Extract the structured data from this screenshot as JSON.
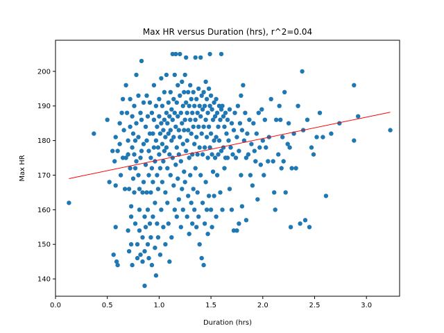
{
  "chart_data": {
    "type": "scatter",
    "title": "Max HR versus Duration (hrs), r^2=0.04",
    "xlabel": "Duration (hrs)",
    "ylabel": "Max HR",
    "xlim": [
      0.0,
      3.32
    ],
    "ylim": [
      135,
      209
    ],
    "xticks": [
      "0.0",
      "0.5",
      "1.0",
      "1.5",
      "2.0",
      "2.5",
      "3.0"
    ],
    "yticks": [
      "140",
      "150",
      "160",
      "170",
      "180",
      "190",
      "200"
    ],
    "grid": false,
    "marker_color": "#1f77b4",
    "fit_line_color": "#ff0000",
    "fit_line": [
      [
        0.13,
        169.0
      ],
      [
        3.23,
        188.2
      ]
    ],
    "points": [
      [
        0.13,
        162
      ],
      [
        0.37,
        182
      ],
      [
        0.5,
        186
      ],
      [
        0.52,
        168
      ],
      [
        0.55,
        177
      ],
      [
        0.56,
        147
      ],
      [
        0.57,
        174
      ],
      [
        0.58,
        167
      ],
      [
        0.58,
        155
      ],
      [
        0.59,
        145
      ],
      [
        0.6,
        144
      ],
      [
        0.58,
        181
      ],
      [
        0.6,
        177
      ],
      [
        0.62,
        185
      ],
      [
        0.62,
        179
      ],
      [
        0.63,
        170
      ],
      [
        0.64,
        188
      ],
      [
        0.65,
        192
      ],
      [
        0.65,
        175
      ],
      [
        0.66,
        183
      ],
      [
        0.67,
        166
      ],
      [
        0.68,
        196
      ],
      [
        0.68,
        175
      ],
      [
        0.69,
        188
      ],
      [
        0.7,
        176
      ],
      [
        0.7,
        154
      ],
      [
        0.7,
        180
      ],
      [
        0.71,
        148
      ],
      [
        0.71,
        166
      ],
      [
        0.72,
        192
      ],
      [
        0.72,
        184
      ],
      [
        0.72,
        172
      ],
      [
        0.73,
        161
      ],
      [
        0.73,
        158
      ],
      [
        0.73,
        150
      ],
      [
        0.74,
        187
      ],
      [
        0.74,
        178
      ],
      [
        0.74,
        144
      ],
      [
        0.75,
        182
      ],
      [
        0.75,
        169
      ],
      [
        0.76,
        190
      ],
      [
        0.76,
        176
      ],
      [
        0.76,
        165
      ],
      [
        0.77,
        180
      ],
      [
        0.77,
        172
      ],
      [
        0.77,
        156
      ],
      [
        0.78,
        199
      ],
      [
        0.78,
        185
      ],
      [
        0.78,
        174
      ],
      [
        0.79,
        150
      ],
      [
        0.79,
        146
      ],
      [
        0.8,
        193
      ],
      [
        0.8,
        181
      ],
      [
        0.8,
        170
      ],
      [
        0.81,
        166
      ],
      [
        0.81,
        160
      ],
      [
        0.81,
        154
      ],
      [
        0.82,
        188
      ],
      [
        0.82,
        175
      ],
      [
        0.82,
        147
      ],
      [
        0.83,
        203
      ],
      [
        0.83,
        186
      ],
      [
        0.83,
        177
      ],
      [
        0.84,
        165
      ],
      [
        0.84,
        152
      ],
      [
        0.84,
        145
      ],
      [
        0.85,
        191
      ],
      [
        0.85,
        179
      ],
      [
        0.85,
        168
      ],
      [
        0.86,
        158
      ],
      [
        0.86,
        148
      ],
      [
        0.86,
        138
      ],
      [
        0.87,
        184
      ],
      [
        0.87,
        173
      ],
      [
        0.87,
        155
      ],
      [
        0.88,
        193
      ],
      [
        0.88,
        180
      ],
      [
        0.88,
        165
      ],
      [
        0.89,
        187
      ],
      [
        0.89,
        160
      ],
      [
        0.89,
        150
      ],
      [
        0.9,
        177
      ],
      [
        0.9,
        170
      ],
      [
        0.9,
        146
      ],
      [
        0.91,
        191
      ],
      [
        0.91,
        182
      ],
      [
        0.91,
        156
      ],
      [
        0.92,
        175
      ],
      [
        0.92,
        165
      ],
      [
        0.92,
        152
      ],
      [
        0.93,
        188
      ],
      [
        0.93,
        172
      ],
      [
        0.93,
        144
      ],
      [
        0.94,
        182
      ],
      [
        0.94,
        168
      ],
      [
        0.94,
        158
      ],
      [
        0.95,
        196
      ],
      [
        0.95,
        186
      ],
      [
        0.95,
        178
      ],
      [
        0.96,
        174
      ],
      [
        0.96,
        162
      ],
      [
        0.96,
        149
      ],
      [
        0.97,
        190
      ],
      [
        0.97,
        180
      ],
      [
        0.97,
        141
      ],
      [
        0.98,
        184
      ],
      [
        0.98,
        170
      ],
      [
        0.98,
        156
      ],
      [
        0.99,
        178
      ],
      [
        0.99,
        166
      ],
      [
        0.99,
        152
      ],
      [
        1.0,
        192
      ],
      [
        1.0,
        187
      ],
      [
        1.0,
        176
      ],
      [
        1.01,
        182
      ],
      [
        1.01,
        172
      ],
      [
        1.01,
        147
      ],
      [
        1.02,
        198
      ],
      [
        1.02,
        185
      ],
      [
        1.02,
        160
      ],
      [
        1.03,
        190
      ],
      [
        1.03,
        179
      ],
      [
        1.03,
        168
      ],
      [
        1.04,
        183
      ],
      [
        1.04,
        174
      ],
      [
        1.04,
        155
      ],
      [
        1.05,
        194
      ],
      [
        1.05,
        186
      ],
      [
        1.05,
        177
      ],
      [
        1.06,
        181
      ],
      [
        1.06,
        165
      ],
      [
        1.06,
        150
      ],
      [
        1.07,
        199
      ],
      [
        1.07,
        188
      ],
      [
        1.07,
        178
      ],
      [
        1.08,
        185
      ],
      [
        1.08,
        172
      ],
      [
        1.08,
        162
      ],
      [
        1.09,
        191
      ],
      [
        1.09,
        182
      ],
      [
        1.09,
        156
      ],
      [
        1.1,
        187
      ],
      [
        1.1,
        176
      ],
      [
        1.1,
        145
      ],
      [
        1.11,
        194
      ],
      [
        1.11,
        183
      ],
      [
        1.11,
        170
      ],
      [
        1.12,
        189
      ],
      [
        1.12,
        180
      ],
      [
        1.12,
        152
      ],
      [
        1.13,
        205
      ],
      [
        1.13,
        186
      ],
      [
        1.13,
        175
      ],
      [
        1.14,
        192
      ],
      [
        1.14,
        181
      ],
      [
        1.14,
        167
      ],
      [
        1.15,
        199
      ],
      [
        1.15,
        188
      ],
      [
        1.15,
        160
      ],
      [
        1.16,
        205
      ],
      [
        1.16,
        184
      ],
      [
        1.16,
        173
      ],
      [
        1.17,
        191
      ],
      [
        1.17,
        178
      ],
      [
        1.17,
        158
      ],
      [
        1.18,
        196
      ],
      [
        1.18,
        187
      ],
      [
        1.18,
        169
      ],
      [
        1.19,
        183
      ],
      [
        1.19,
        176
      ],
      [
        1.19,
        163
      ],
      [
        1.2,
        205
      ],
      [
        1.2,
        193
      ],
      [
        1.2,
        181
      ],
      [
        1.21,
        188
      ],
      [
        1.21,
        174
      ],
      [
        1.21,
        155
      ],
      [
        1.22,
        197
      ],
      [
        1.22,
        185
      ],
      [
        1.22,
        166
      ],
      [
        1.23,
        190
      ],
      [
        1.23,
        179
      ],
      [
        1.23,
        160
      ],
      [
        1.24,
        194
      ],
      [
        1.24,
        183
      ],
      [
        1.24,
        171
      ],
      [
        1.25,
        199
      ],
      [
        1.25,
        186
      ],
      [
        1.25,
        168
      ],
      [
        1.26,
        204
      ],
      [
        1.26,
        191
      ],
      [
        1.26,
        177
      ],
      [
        1.27,
        188
      ],
      [
        1.27,
        180
      ],
      [
        1.27,
        158
      ],
      [
        1.28,
        194
      ],
      [
        1.28,
        183
      ],
      [
        1.28,
        164
      ],
      [
        1.29,
        190
      ],
      [
        1.29,
        175
      ],
      [
        1.29,
        153
      ],
      [
        1.3,
        196
      ],
      [
        1.3,
        186
      ],
      [
        1.3,
        170
      ],
      [
        1.31,
        192
      ],
      [
        1.31,
        182
      ],
      [
        1.31,
        162
      ],
      [
        1.32,
        188
      ],
      [
        1.32,
        176
      ],
      [
        1.32,
        156
      ],
      [
        1.33,
        194
      ],
      [
        1.33,
        184
      ],
      [
        1.33,
        166
      ],
      [
        1.34,
        190
      ],
      [
        1.34,
        179
      ],
      [
        1.34,
        160
      ],
      [
        1.35,
        204
      ],
      [
        1.35,
        186
      ],
      [
        1.35,
        172
      ],
      [
        1.36,
        192
      ],
      [
        1.36,
        181
      ],
      [
        1.36,
        155
      ],
      [
        1.37,
        188
      ],
      [
        1.37,
        176
      ],
      [
        1.37,
        165
      ],
      [
        1.38,
        195
      ],
      [
        1.38,
        184
      ],
      [
        1.38,
        158
      ],
      [
        1.39,
        190
      ],
      [
        1.39,
        178
      ],
      [
        1.39,
        150
      ],
      [
        1.4,
        204
      ],
      [
        1.4,
        187
      ],
      [
        1.4,
        170
      ],
      [
        1.41,
        193
      ],
      [
        1.41,
        182
      ],
      [
        1.41,
        146
      ],
      [
        1.42,
        189
      ],
      [
        1.42,
        176
      ],
      [
        1.42,
        162
      ],
      [
        1.43,
        194
      ],
      [
        1.43,
        184
      ],
      [
        1.43,
        144
      ],
      [
        1.44,
        190
      ],
      [
        1.44,
        178
      ],
      [
        1.44,
        156
      ],
      [
        1.45,
        197
      ],
      [
        1.45,
        186
      ],
      [
        1.45,
        168
      ],
      [
        1.46,
        192
      ],
      [
        1.46,
        181
      ],
      [
        1.46,
        160
      ],
      [
        1.47,
        188
      ],
      [
        1.47,
        175
      ],
      [
        1.47,
        153
      ],
      [
        1.48,
        195
      ],
      [
        1.48,
        184
      ],
      [
        1.48,
        164
      ],
      [
        1.49,
        205
      ],
      [
        1.49,
        190
      ],
      [
        1.49,
        178
      ],
      [
        1.5,
        193
      ],
      [
        1.5,
        182
      ],
      [
        1.5,
        160
      ],
      [
        1.51,
        189
      ],
      [
        1.51,
        176
      ],
      [
        1.51,
        155
      ],
      [
        1.52,
        186
      ],
      [
        1.52,
        171
      ],
      [
        1.53,
        191
      ],
      [
        1.53,
        180
      ],
      [
        1.53,
        164
      ],
      [
        1.54,
        187
      ],
      [
        1.54,
        175
      ],
      [
        1.55,
        192
      ],
      [
        1.55,
        181
      ],
      [
        1.55,
        158
      ],
      [
        1.56,
        188
      ],
      [
        1.56,
        170
      ],
      [
        1.57,
        184
      ],
      [
        1.57,
        176
      ],
      [
        1.58,
        190
      ],
      [
        1.58,
        180
      ],
      [
        1.59,
        186
      ],
      [
        1.59,
        165
      ],
      [
        1.6,
        205
      ],
      [
        1.6,
        189
      ],
      [
        1.6,
        177
      ],
      [
        1.61,
        190
      ],
      [
        1.61,
        160
      ],
      [
        1.62,
        187
      ],
      [
        1.62,
        178
      ],
      [
        1.63,
        184
      ],
      [
        1.63,
        172
      ],
      [
        1.64,
        188
      ],
      [
        1.64,
        175
      ],
      [
        1.65,
        182
      ],
      [
        1.66,
        186
      ],
      [
        1.66,
        175
      ],
      [
        1.67,
        180
      ],
      [
        1.68,
        189
      ],
      [
        1.68,
        166
      ],
      [
        1.69,
        178
      ],
      [
        1.7,
        185
      ],
      [
        1.7,
        160
      ],
      [
        1.71,
        176
      ],
      [
        1.72,
        183
      ],
      [
        1.72,
        154
      ],
      [
        1.73,
        188
      ],
      [
        1.74,
        175
      ],
      [
        1.75,
        181
      ],
      [
        1.75,
        154
      ],
      [
        1.76,
        190
      ],
      [
        1.77,
        177
      ],
      [
        1.77,
        156
      ],
      [
        1.78,
        185
      ],
      [
        1.79,
        193
      ],
      [
        1.79,
        170
      ],
      [
        1.8,
        183
      ],
      [
        1.8,
        161
      ],
      [
        1.81,
        196
      ],
      [
        1.82,
        180
      ],
      [
        1.83,
        188
      ],
      [
        1.84,
        175
      ],
      [
        1.84,
        157
      ],
      [
        1.85,
        182
      ],
      [
        1.86,
        176
      ],
      [
        1.87,
        186
      ],
      [
        1.88,
        170
      ],
      [
        1.89,
        179
      ],
      [
        1.9,
        167
      ],
      [
        1.91,
        185
      ],
      [
        1.92,
        177
      ],
      [
        1.93,
        174
      ],
      [
        1.94,
        182
      ],
      [
        1.95,
        163
      ],
      [
        1.96,
        188
      ],
      [
        1.97,
        178
      ],
      [
        1.98,
        173
      ],
      [
        1.99,
        189
      ],
      [
        2.0,
        180
      ],
      [
        2.01,
        170
      ],
      [
        2.02,
        186
      ],
      [
        2.03,
        178
      ],
      [
        2.05,
        174
      ],
      [
        2.06,
        181
      ],
      [
        2.08,
        192
      ],
      [
        2.1,
        174
      ],
      [
        2.11,
        165
      ],
      [
        2.12,
        160
      ],
      [
        2.13,
        186
      ],
      [
        2.15,
        176
      ],
      [
        2.16,
        190
      ],
      [
        2.17,
        186
      ],
      [
        2.18,
        172
      ],
      [
        2.19,
        181
      ],
      [
        2.2,
        174
      ],
      [
        2.21,
        194
      ],
      [
        2.22,
        165
      ],
      [
        2.24,
        179
      ],
      [
        2.25,
        185
      ],
      [
        2.26,
        178
      ],
      [
        2.27,
        155
      ],
      [
        2.28,
        172
      ],
      [
        2.3,
        182
      ],
      [
        2.32,
        172
      ],
      [
        2.34,
        190
      ],
      [
        2.36,
        156
      ],
      [
        2.38,
        200
      ],
      [
        2.39,
        183
      ],
      [
        2.41,
        157
      ],
      [
        2.43,
        186
      ],
      [
        2.45,
        155
      ],
      [
        2.47,
        178
      ],
      [
        2.49,
        176
      ],
      [
        2.52,
        181
      ],
      [
        2.55,
        188
      ],
      [
        2.58,
        181
      ],
      [
        2.61,
        164
      ],
      [
        2.66,
        182
      ],
      [
        2.74,
        185
      ],
      [
        2.88,
        196
      ],
      [
        2.88,
        180
      ],
      [
        2.92,
        187
      ],
      [
        3.23,
        183
      ]
    ]
  }
}
